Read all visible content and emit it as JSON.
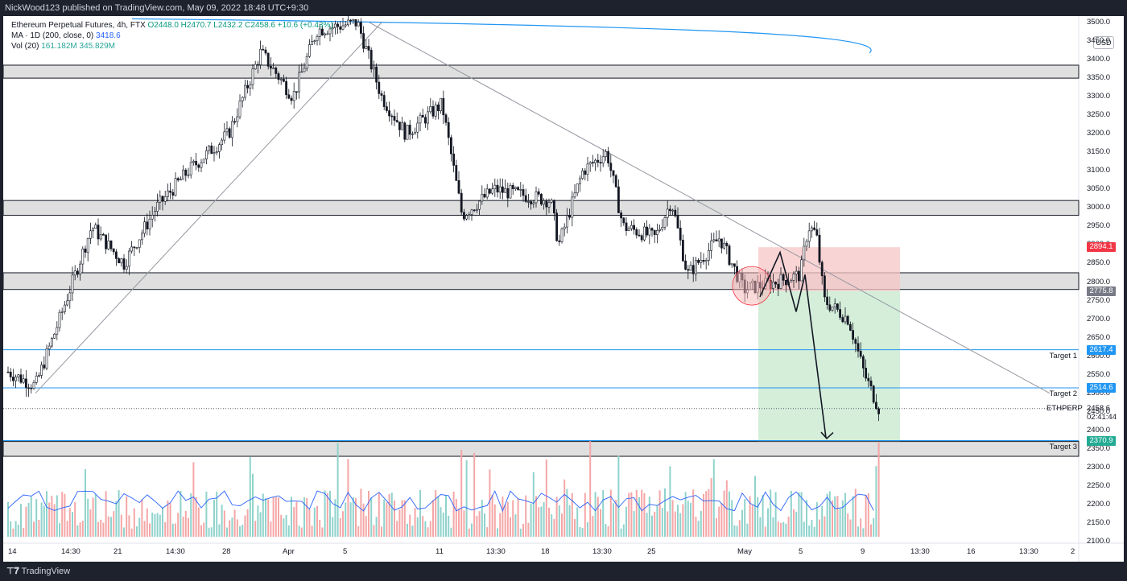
{
  "header": {
    "publisher": "NickWood123 published on TradingView.com, May 09, 2022 18:48 UTC+9:30"
  },
  "legend": {
    "symbol": "Ethereum Perpetual Futures, 4h, FTX",
    "ohlc": "O2448.0  H2470.7  L2432.2  C2458.6  +10.6 (+0.43%)",
    "ma_label": "MA · 1D (200, close, 0)",
    "ma_value": "3418.6",
    "vol_label": "Vol (20)",
    "vol_value_1": "161.182M",
    "vol_value_2": "345.829M"
  },
  "currency_button": "USD",
  "price_axis": {
    "ticks": [
      "3500.0",
      "3450.0",
      "3400.0",
      "3350.0",
      "3300.0",
      "3250.0",
      "3200.0",
      "3150.0",
      "3100.0",
      "3050.0",
      "3000.0",
      "2950.0",
      "2900.0",
      "2850.0",
      "2800.0",
      "2750.0",
      "2700.0",
      "2650.0",
      "2600.0",
      "2550.0",
      "2500.0",
      "2450.0",
      "2400.0",
      "2350.0",
      "2300.0",
      "2250.0",
      "2200.0",
      "2150.0",
      "2100.0"
    ],
    "tick_values": [
      3500,
      3450,
      3400,
      3350,
      3300,
      3250,
      3200,
      3150,
      3100,
      3050,
      3000,
      2950,
      2900,
      2850,
      2800,
      2750,
      2700,
      2650,
      2600,
      2550,
      2500,
      2450,
      2400,
      2350,
      2300,
      2250,
      2200,
      2150,
      2100
    ]
  },
  "time_axis": {
    "labels": [
      "14",
      "14:30",
      "21",
      "14:30",
      "28",
      "Apr",
      "5",
      "11",
      "13:30",
      "18",
      "13:30",
      "25",
      "May",
      "5",
      "9",
      "13:30",
      "16",
      "13:30",
      "2"
    ]
  },
  "price_badges": [
    {
      "text": "2894.1",
      "value": 2894.1,
      "color": "#f23645"
    },
    {
      "text": "2775.8",
      "value": 2775.8,
      "color": "#787b86"
    },
    {
      "text": "2617.4",
      "value": 2617.4,
      "color": "#2196f3"
    },
    {
      "text": "2514.6",
      "value": 2514.6,
      "color": "#2196f3"
    },
    {
      "text": "2372.4",
      "value": 2372.4,
      "color": "#2196f3"
    },
    {
      "text": "2370.9",
      "value": 2370.9,
      "color": "#22ab94"
    }
  ],
  "last_price": {
    "symbol": "ETHPERP",
    "value": "2458.6",
    "countdown": "02:41:44"
  },
  "targets": [
    {
      "label": "Target 1",
      "value": 2617.4
    },
    {
      "label": "Target 2",
      "value": 2514.6
    },
    {
      "label": "Target 3",
      "value": 2372.4
    }
  ],
  "zones": [
    {
      "low": 3350,
      "high": 3385
    },
    {
      "low": 2980,
      "high": 3020
    },
    {
      "low": 2780,
      "high": 2825
    },
    {
      "low": 2330,
      "high": 2370
    }
  ],
  "position": {
    "entry": 2775.8,
    "stop": 2894.1,
    "target": 2370.9
  },
  "colors": {
    "up": "#26a69a",
    "down": "#ef5350",
    "ma": "#2196f3",
    "vol_ma": "#2962ff",
    "stop_zone": "#f7c5c5",
    "profit_zone": "#cdebd3"
  },
  "footer": {
    "brand": "TradingView"
  }
}
